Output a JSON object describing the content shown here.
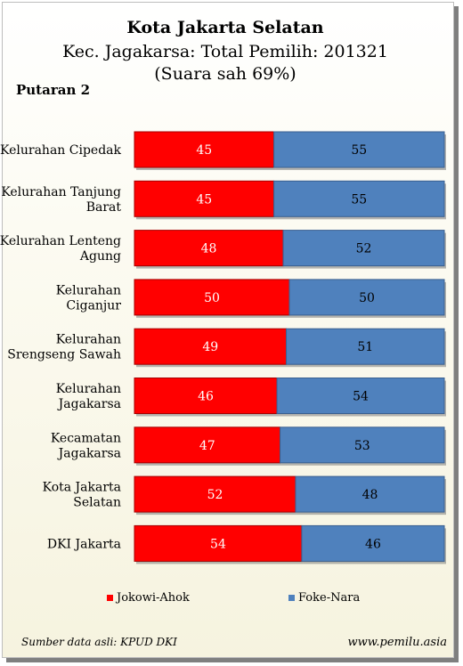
{
  "chart_data": {
    "type": "bar",
    "orientation": "horizontal",
    "stacked": "100%",
    "title": "Kota Jakarta Selatan",
    "subtitle": "Kec. Jagakarsa:  Total Pemilih: 201321",
    "subtitle2": "(Suara sah 69%)",
    "round_label": "Putaran 2",
    "categories": [
      "Kelurahan Cipedak",
      "Kelurahan Tanjung Barat",
      "Kelurahan Lenteng Agung",
      "Kelurahan Ciganjur",
      "Kelurahan Srengseng Sawah",
      "Kelurahan Jagakarsa",
      "Kecamatan Jagakarsa",
      "Kota Jakarta Selatan",
      "DKI Jakarta"
    ],
    "category_lines": [
      [
        "Kelurahan Cipedak"
      ],
      [
        "Kelurahan Tanjung",
        "Barat"
      ],
      [
        "Kelurahan Lenteng",
        "Agung"
      ],
      [
        "Kelurahan",
        "Ciganjur"
      ],
      [
        "Kelurahan",
        "Srengseng Sawah"
      ],
      [
        "Kelurahan",
        "Jagakarsa"
      ],
      [
        "Kecamatan",
        "Jagakarsa"
      ],
      [
        "Kota Jakarta",
        "Selatan"
      ],
      [
        "DKI Jakarta"
      ]
    ],
    "series": [
      {
        "name": "Jokowi-Ahok",
        "values": [
          45,
          45,
          48,
          50,
          49,
          46,
          47,
          52,
          54
        ],
        "color": "#ff0000"
      },
      {
        "name": "Foke-Nara",
        "values": [
          55,
          55,
          52,
          50,
          51,
          54,
          53,
          48,
          46
        ],
        "color": "#4f81bd"
      }
    ],
    "xlim": [
      0,
      100
    ],
    "grid": false,
    "legend_position": "bottom"
  },
  "footer": {
    "source": "Sumber data asli: KPUD DKI",
    "site": "www.pemilu.asia"
  }
}
